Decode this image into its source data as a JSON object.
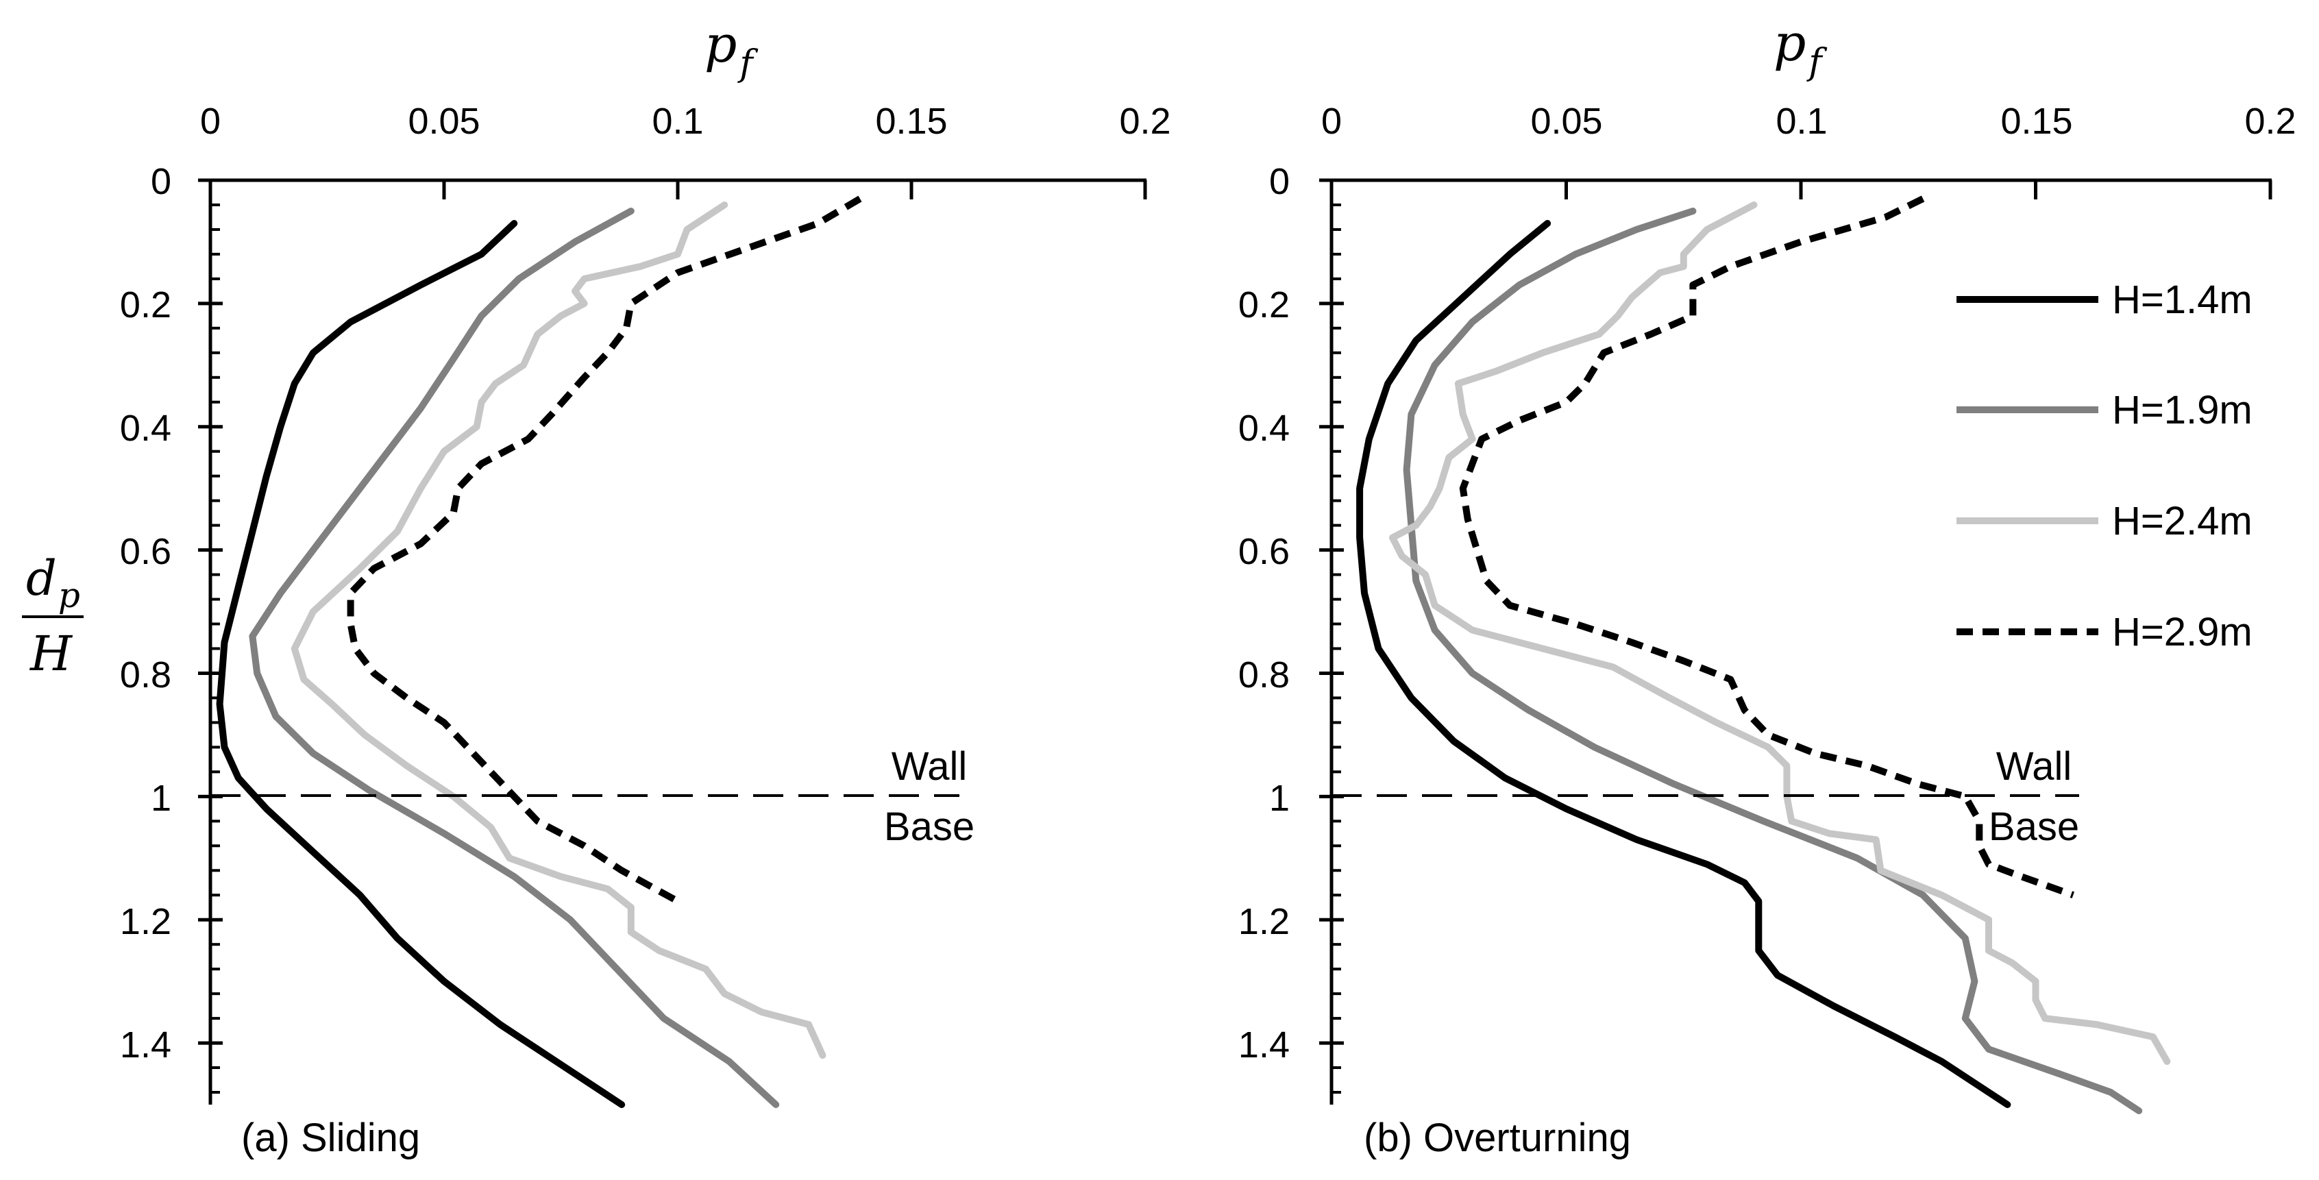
{
  "chart_data": [
    {
      "type": "line",
      "caption": "(a) Sliding",
      "xlabel": "p_f",
      "ylabel": "d_p/H",
      "xlim": [
        0,
        0.2
      ],
      "ylim": [
        0,
        1.5
      ],
      "x_ticks": [
        "0",
        "0.05",
        "0.1",
        "0.15",
        "0.2"
      ],
      "y_ticks": [
        "0",
        "0.2",
        "0.4",
        "0.6",
        "0.8",
        "1",
        "1.2",
        "1.4"
      ],
      "annotation": {
        "line1": "Wall",
        "line2": "Base",
        "depth": 1
      },
      "series": [
        {
          "name": "H=1.4m",
          "points": [
            [
              0.065,
              0.07
            ],
            [
              0.058,
              0.12
            ],
            [
              0.045,
              0.17
            ],
            [
              0.03,
              0.23
            ],
            [
              0.022,
              0.28
            ],
            [
              0.018,
              0.33
            ],
            [
              0.015,
              0.4
            ],
            [
              0.012,
              0.48
            ],
            [
              0.009,
              0.57
            ],
            [
              0.006,
              0.66
            ],
            [
              0.003,
              0.75
            ],
            [
              0.002,
              0.85
            ],
            [
              0.003,
              0.92
            ],
            [
              0.006,
              0.97
            ],
            [
              0.012,
              1.02
            ],
            [
              0.022,
              1.09
            ],
            [
              0.032,
              1.16
            ],
            [
              0.04,
              1.23
            ],
            [
              0.05,
              1.3
            ],
            [
              0.062,
              1.37
            ],
            [
              0.076,
              1.44
            ],
            [
              0.088,
              1.5
            ]
          ]
        },
        {
          "name": "H=1.9m",
          "points": [
            [
              0.09,
              0.05
            ],
            [
              0.078,
              0.1
            ],
            [
              0.066,
              0.16
            ],
            [
              0.058,
              0.22
            ],
            [
              0.052,
              0.29
            ],
            [
              0.045,
              0.37
            ],
            [
              0.038,
              0.44
            ],
            [
              0.03,
              0.52
            ],
            [
              0.022,
              0.6
            ],
            [
              0.015,
              0.67
            ],
            [
              0.009,
              0.74
            ],
            [
              0.01,
              0.8
            ],
            [
              0.014,
              0.87
            ],
            [
              0.022,
              0.93
            ],
            [
              0.034,
              0.99
            ],
            [
              0.05,
              1.06
            ],
            [
              0.065,
              1.13
            ],
            [
              0.077,
              1.2
            ],
            [
              0.087,
              1.28
            ],
            [
              0.097,
              1.36
            ],
            [
              0.111,
              1.43
            ],
            [
              0.121,
              1.5
            ]
          ]
        },
        {
          "name": "H=2.4m",
          "points": [
            [
              0.11,
              0.04
            ],
            [
              0.102,
              0.08
            ],
            [
              0.1,
              0.12
            ],
            [
              0.092,
              0.14
            ],
            [
              0.08,
              0.16
            ],
            [
              0.078,
              0.18
            ],
            [
              0.08,
              0.2
            ],
            [
              0.075,
              0.22
            ],
            [
              0.07,
              0.25
            ],
            [
              0.067,
              0.3
            ],
            [
              0.061,
              0.33
            ],
            [
              0.058,
              0.36
            ],
            [
              0.057,
              0.4
            ],
            [
              0.05,
              0.44
            ],
            [
              0.045,
              0.5
            ],
            [
              0.04,
              0.57
            ],
            [
              0.032,
              0.63
            ],
            [
              0.022,
              0.7
            ],
            [
              0.018,
              0.76
            ],
            [
              0.02,
              0.81
            ],
            [
              0.026,
              0.85
            ],
            [
              0.033,
              0.9
            ],
            [
              0.042,
              0.95
            ],
            [
              0.052,
              1.0
            ],
            [
              0.06,
              1.05
            ],
            [
              0.064,
              1.1
            ],
            [
              0.075,
              1.13
            ],
            [
              0.085,
              1.15
            ],
            [
              0.09,
              1.18
            ],
            [
              0.09,
              1.22
            ],
            [
              0.096,
              1.25
            ],
            [
              0.106,
              1.28
            ],
            [
              0.11,
              1.32
            ],
            [
              0.118,
              1.35
            ],
            [
              0.128,
              1.37
            ],
            [
              0.131,
              1.42
            ]
          ]
        },
        {
          "name": "H=2.9m",
          "points": [
            [
              0.139,
              0.03
            ],
            [
              0.13,
              0.07
            ],
            [
              0.115,
              0.11
            ],
            [
              0.1,
              0.15
            ],
            [
              0.09,
              0.2
            ],
            [
              0.089,
              0.24
            ],
            [
              0.085,
              0.28
            ],
            [
              0.08,
              0.32
            ],
            [
              0.073,
              0.38
            ],
            [
              0.068,
              0.42
            ],
            [
              0.058,
              0.46
            ],
            [
              0.053,
              0.5
            ],
            [
              0.052,
              0.54
            ],
            [
              0.045,
              0.59
            ],
            [
              0.035,
              0.63
            ],
            [
              0.03,
              0.67
            ],
            [
              0.03,
              0.72
            ],
            [
              0.031,
              0.76
            ],
            [
              0.035,
              0.8
            ],
            [
              0.042,
              0.84
            ],
            [
              0.05,
              0.88
            ],
            [
              0.055,
              0.92
            ],
            [
              0.06,
              0.96
            ],
            [
              0.065,
              1.0
            ],
            [
              0.07,
              1.04
            ],
            [
              0.08,
              1.08
            ],
            [
              0.088,
              1.12
            ],
            [
              0.1,
              1.17
            ]
          ]
        }
      ]
    },
    {
      "type": "line",
      "caption": "(b) Overturning",
      "xlabel": "p_f",
      "ylabel": "",
      "xlim": [
        0,
        0.2
      ],
      "ylim": [
        0,
        1.5
      ],
      "x_ticks": [
        "0",
        "0.05",
        "0.1",
        "0.15",
        "0.2"
      ],
      "y_ticks": [
        "0",
        "0.2",
        "0.4",
        "0.6",
        "0.8",
        "1",
        "1.2",
        "1.4"
      ],
      "annotation": {
        "line1": "Wall",
        "line2": "Base",
        "depth": 1
      },
      "legend": {
        "position": "top-right"
      },
      "series": [
        {
          "name": "H=1.4m",
          "points": [
            [
              0.046,
              0.07
            ],
            [
              0.038,
              0.12
            ],
            [
              0.028,
              0.19
            ],
            [
              0.018,
              0.26
            ],
            [
              0.012,
              0.33
            ],
            [
              0.008,
              0.42
            ],
            [
              0.006,
              0.5
            ],
            [
              0.006,
              0.58
            ],
            [
              0.007,
              0.67
            ],
            [
              0.01,
              0.76
            ],
            [
              0.017,
              0.84
            ],
            [
              0.026,
              0.91
            ],
            [
              0.037,
              0.97
            ],
            [
              0.05,
              1.02
            ],
            [
              0.065,
              1.07
            ],
            [
              0.08,
              1.11
            ],
            [
              0.088,
              1.14
            ],
            [
              0.091,
              1.17
            ],
            [
              0.091,
              1.25
            ],
            [
              0.095,
              1.29
            ],
            [
              0.107,
              1.34
            ],
            [
              0.12,
              1.39
            ],
            [
              0.13,
              1.43
            ],
            [
              0.14,
              1.48
            ],
            [
              0.144,
              1.5
            ]
          ]
        },
        {
          "name": "H=1.9m",
          "points": [
            [
              0.077,
              0.05
            ],
            [
              0.065,
              0.08
            ],
            [
              0.052,
              0.12
            ],
            [
              0.04,
              0.17
            ],
            [
              0.03,
              0.23
            ],
            [
              0.022,
              0.3
            ],
            [
              0.017,
              0.38
            ],
            [
              0.016,
              0.47
            ],
            [
              0.017,
              0.56
            ],
            [
              0.018,
              0.65
            ],
            [
              0.022,
              0.73
            ],
            [
              0.03,
              0.8
            ],
            [
              0.042,
              0.86
            ],
            [
              0.056,
              0.92
            ],
            [
              0.073,
              0.98
            ],
            [
              0.092,
              1.04
            ],
            [
              0.112,
              1.1
            ],
            [
              0.126,
              1.16
            ],
            [
              0.135,
              1.23
            ],
            [
              0.137,
              1.3
            ],
            [
              0.135,
              1.36
            ],
            [
              0.14,
              1.41
            ],
            [
              0.155,
              1.45
            ],
            [
              0.166,
              1.48
            ],
            [
              0.172,
              1.51
            ]
          ]
        },
        {
          "name": "H=2.4m",
          "points": [
            [
              0.09,
              0.04
            ],
            [
              0.08,
              0.08
            ],
            [
              0.075,
              0.12
            ],
            [
              0.075,
              0.14
            ],
            [
              0.07,
              0.15
            ],
            [
              0.064,
              0.19
            ],
            [
              0.061,
              0.22
            ],
            [
              0.057,
              0.25
            ],
            [
              0.045,
              0.28
            ],
            [
              0.035,
              0.31
            ],
            [
              0.027,
              0.33
            ],
            [
              0.028,
              0.38
            ],
            [
              0.03,
              0.42
            ],
            [
              0.025,
              0.45
            ],
            [
              0.023,
              0.5
            ],
            [
              0.021,
              0.53
            ],
            [
              0.018,
              0.56
            ],
            [
              0.013,
              0.58
            ],
            [
              0.015,
              0.61
            ],
            [
              0.02,
              0.64
            ],
            [
              0.022,
              0.69
            ],
            [
              0.03,
              0.73
            ],
            [
              0.045,
              0.76
            ],
            [
              0.06,
              0.79
            ],
            [
              0.072,
              0.84
            ],
            [
              0.082,
              0.88
            ],
            [
              0.093,
              0.92
            ],
            [
              0.097,
              0.95
            ],
            [
              0.097,
              1.0
            ],
            [
              0.098,
              1.04
            ],
            [
              0.106,
              1.06
            ],
            [
              0.116,
              1.07
            ],
            [
              0.117,
              1.12
            ],
            [
              0.13,
              1.16
            ],
            [
              0.14,
              1.2
            ],
            [
              0.14,
              1.25
            ],
            [
              0.145,
              1.27
            ],
            [
              0.15,
              1.3
            ],
            [
              0.15,
              1.33
            ],
            [
              0.152,
              1.36
            ],
            [
              0.163,
              1.37
            ],
            [
              0.175,
              1.39
            ],
            [
              0.178,
              1.43
            ]
          ]
        },
        {
          "name": "H=2.9m",
          "points": [
            [
              0.126,
              0.03
            ],
            [
              0.118,
              0.06
            ],
            [
              0.1,
              0.1
            ],
            [
              0.085,
              0.14
            ],
            [
              0.077,
              0.17
            ],
            [
              0.077,
              0.22
            ],
            [
              0.068,
              0.25
            ],
            [
              0.058,
              0.28
            ],
            [
              0.054,
              0.33
            ],
            [
              0.05,
              0.36
            ],
            [
              0.04,
              0.39
            ],
            [
              0.032,
              0.42
            ],
            [
              0.03,
              0.46
            ],
            [
              0.028,
              0.5
            ],
            [
              0.029,
              0.55
            ],
            [
              0.031,
              0.6
            ],
            [
              0.033,
              0.65
            ],
            [
              0.038,
              0.69
            ],
            [
              0.052,
              0.72
            ],
            [
              0.064,
              0.75
            ],
            [
              0.075,
              0.78
            ],
            [
              0.085,
              0.81
            ],
            [
              0.088,
              0.86
            ],
            [
              0.093,
              0.9
            ],
            [
              0.103,
              0.93
            ],
            [
              0.114,
              0.95
            ],
            [
              0.125,
              0.98
            ],
            [
              0.135,
              1.0
            ],
            [
              0.138,
              1.04
            ],
            [
              0.138,
              1.08
            ],
            [
              0.14,
              1.11
            ],
            [
              0.147,
              1.13
            ],
            [
              0.158,
              1.16
            ]
          ]
        }
      ]
    }
  ],
  "colors": {
    "H=1.4m": "#000000",
    "H=1.9m": "#808080",
    "H=2.4m": "#c6c6c6",
    "H=2.9m": "#000000"
  },
  "dashed_series": [
    "H=2.9m"
  ]
}
